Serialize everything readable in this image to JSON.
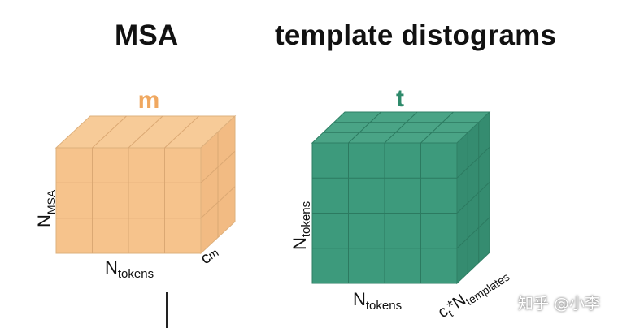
{
  "titles": {
    "msa": "MSA",
    "template": "template distograms"
  },
  "msa_cube": {
    "symbol": "m",
    "height_label": "N",
    "height_label_sub": "MSA",
    "width_label": "N",
    "width_label_sub": "tokens",
    "depth_label": "c",
    "depth_label_sub": "m",
    "color_front": "#f6c38c",
    "color_top": "#f7cb98",
    "color_side": "#f2bb83",
    "color_symbol": "#f0a860"
  },
  "template_cube": {
    "symbol": "t",
    "height_label": "N",
    "height_label_sub": "tokens",
    "width_label": "N",
    "width_label_sub": "tokens",
    "depth_label_c": "c",
    "depth_label_c_sub": "t",
    "depth_label_star": "*N",
    "depth_label_sub": "templates",
    "color_front": "#3d9a7c",
    "color_top": "#4aa486",
    "color_side": "#358c70",
    "color_symbol": "#2e8a6b"
  },
  "watermark": "知乎 @小李"
}
